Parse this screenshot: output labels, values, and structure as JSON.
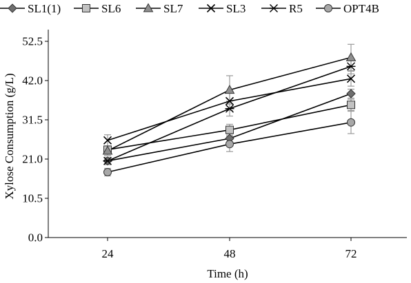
{
  "chart_data": {
    "type": "line",
    "title": "",
    "xlabel": "Time (h)",
    "ylabel": "Xylose Consumption (g/L)",
    "categories": [
      "24",
      "48",
      "72"
    ],
    "yticks": [
      "0.0",
      "10.5",
      "21.0",
      "31.5",
      "42.0",
      "52.5"
    ],
    "ylim": [
      0,
      52.5
    ],
    "grid": false,
    "legend_position": "top",
    "series": [
      {
        "name": "SL1(1)",
        "marker": "diamond",
        "fill": "#6f6f6f",
        "values": [
          20.5,
          26.5,
          38.5
        ],
        "errors": [
          0.8,
          1.2,
          1.2
        ]
      },
      {
        "name": "SL6",
        "marker": "square",
        "fill": "#c2c2c2",
        "values": [
          23.5,
          28.8,
          35.5
        ],
        "errors": [
          0.8,
          1.5,
          1.5
        ]
      },
      {
        "name": "SL7",
        "marker": "triangle",
        "fill": "#8f8f8f",
        "values": [
          23.2,
          39.5,
          48.2
        ],
        "errors": [
          1.2,
          3.8,
          3.5
        ]
      },
      {
        "name": "SL3",
        "marker": "x",
        "fill": "#000000",
        "values": [
          26.0,
          36.5,
          42.5
        ],
        "errors": [
          1.5,
          2.5,
          2.0
        ]
      },
      {
        "name": "R5",
        "marker": "asterisk",
        "fill": "#000000",
        "values": [
          20.5,
          34.5,
          45.8
        ],
        "errors": [
          1.0,
          2.0,
          2.0
        ]
      },
      {
        "name": "OPT4B",
        "marker": "circle",
        "fill": "#a8a8a8",
        "values": [
          17.5,
          25.0,
          30.8
        ],
        "errors": [
          1.0,
          2.0,
          3.0
        ]
      }
    ],
    "colors": {
      "line": "#000000",
      "error_bar": "#9a9a9a",
      "axis": "#000000"
    }
  }
}
